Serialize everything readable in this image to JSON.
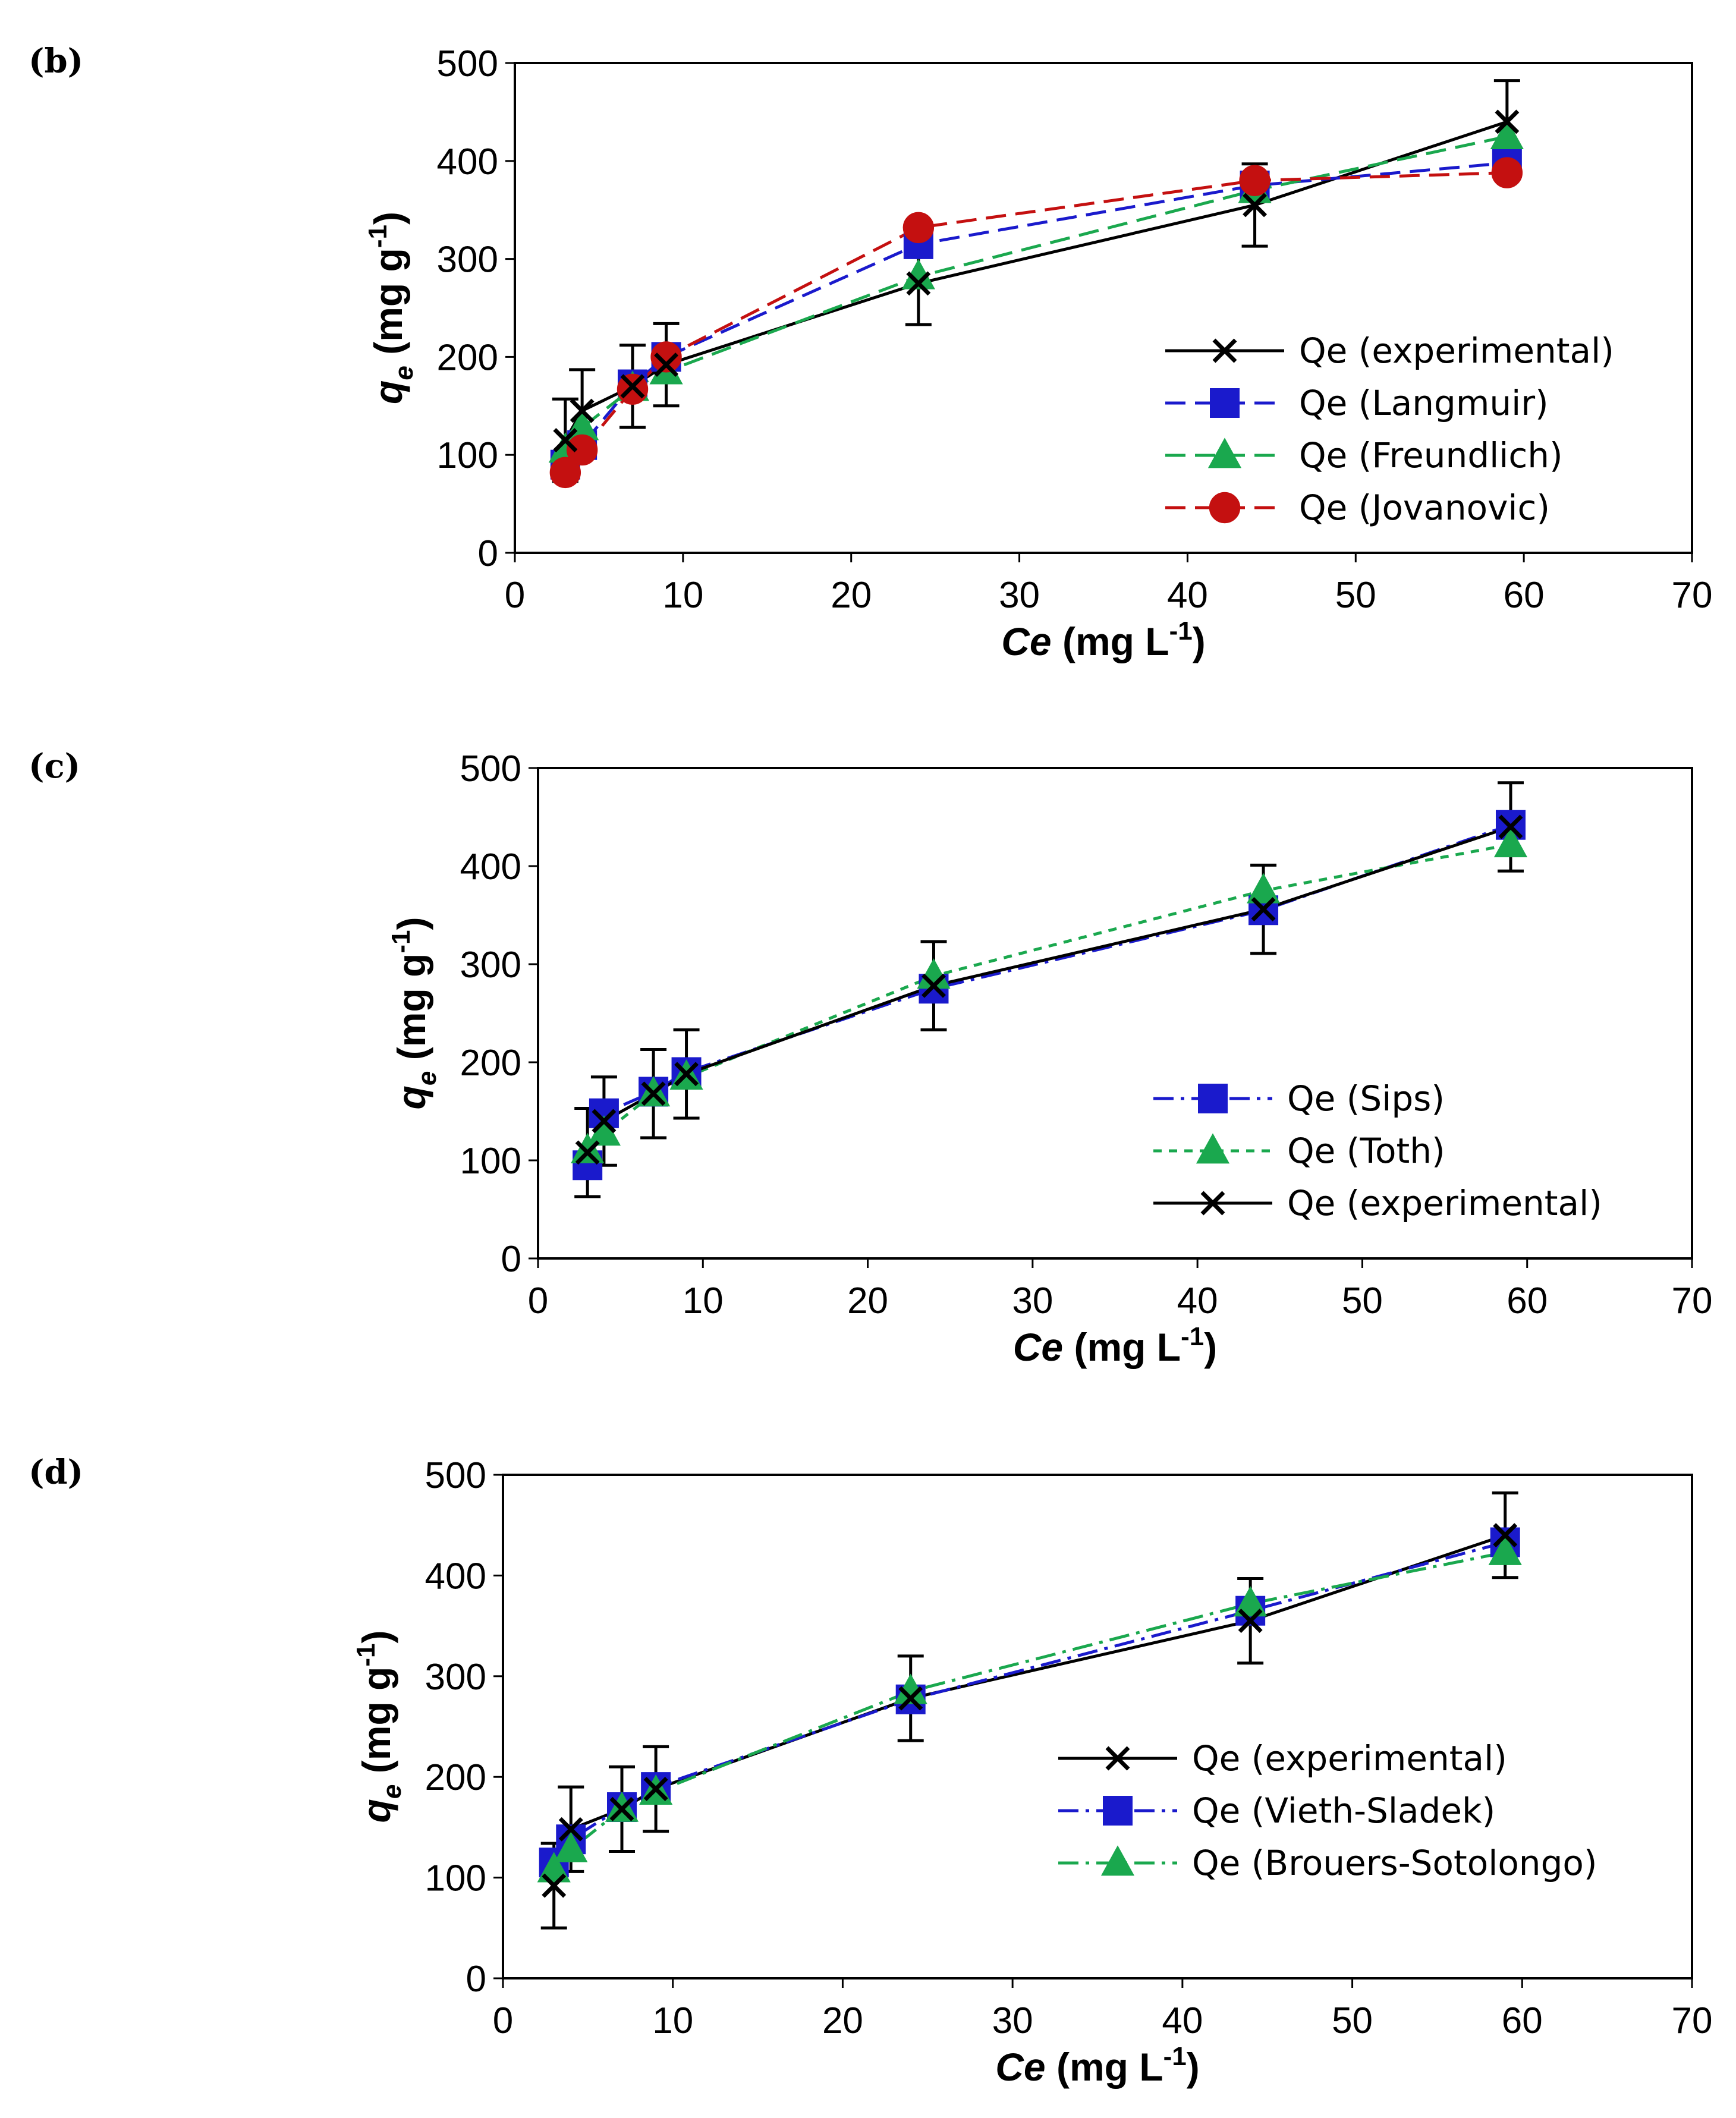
{
  "chart_data": [
    {
      "panel_label": "(b)",
      "type": "line",
      "x": [
        3,
        4,
        7,
        9,
        24,
        44,
        59
      ],
      "series": [
        {
          "name": "Qe (experimental)",
          "values": [
            115,
            145,
            170,
            192,
            275,
            355,
            440
          ],
          "color": "#000000",
          "marker": "x",
          "line": "solid",
          "error": 42
        },
        {
          "name": "Qe (Langmuir)",
          "values": [
            90,
            110,
            172,
            200,
            315,
            375,
            398
          ],
          "color": "#1a1acc",
          "marker": "square",
          "line": "dash"
        },
        {
          "name": "Qe (Freundlich)",
          "values": [
            105,
            128,
            168,
            185,
            282,
            370,
            425
          ],
          "color": "#1aa84e",
          "marker": "triangle",
          "line": "dash"
        },
        {
          "name": "Qe (Jovanovic)",
          "values": [
            82,
            105,
            167,
            200,
            332,
            380,
            388
          ],
          "color": "#c41010",
          "marker": "circle",
          "line": "dash"
        }
      ],
      "xlabel_italic": "Ce",
      "xlabel_units": "(mg L",
      "xlabel_sup": "-1",
      "xlabel_close": ")",
      "ylabel_q": "q",
      "ylabel_sub": "e",
      "ylabel_units": "(mg g",
      "ylabel_sup": "-1",
      "ylabel_close": ")",
      "xlim": [
        0,
        70
      ],
      "ylim": [
        0,
        500
      ],
      "xticks": [
        "0",
        "10",
        "20",
        "30",
        "40",
        "50",
        "60",
        "70"
      ],
      "yticks": [
        "0",
        "100",
        "200",
        "300",
        "400",
        "500"
      ],
      "legend_position": "right-center"
    },
    {
      "panel_label": "(c)",
      "type": "line",
      "x": [
        3,
        4,
        7,
        9,
        24,
        44,
        59
      ],
      "series": [
        {
          "name": "Qe (Sips)",
          "values": [
            95,
            148,
            170,
            190,
            275,
            355,
            442
          ],
          "color": "#1a1acc",
          "marker": "square",
          "line": "dashdot"
        },
        {
          "name": "Qe (Toth)",
          "values": [
            110,
            128,
            168,
            185,
            288,
            375,
            422
          ],
          "color": "#1aa84e",
          "marker": "triangle",
          "line": "dot"
        },
        {
          "name": "Qe (experimental)",
          "values": [
            108,
            140,
            168,
            188,
            278,
            356,
            440
          ],
          "color": "#000000",
          "marker": "x",
          "line": "solid",
          "error": 45
        }
      ],
      "xlabel_italic": "Ce",
      "xlabel_units": "(mg L",
      "xlabel_sup": "-1",
      "xlabel_close": ")",
      "ylabel_q": "q",
      "ylabel_sub": "e",
      "ylabel_units": "(mg g",
      "ylabel_sup": "-1",
      "ylabel_close": ")",
      "xlim": [
        0,
        70
      ],
      "ylim": [
        0,
        500
      ],
      "xticks": [
        "0",
        "10",
        "20",
        "30",
        "40",
        "50",
        "60",
        "70"
      ],
      "yticks": [
        "0",
        "100",
        "200",
        "300",
        "400",
        "500"
      ],
      "legend_position": "right-lower"
    },
    {
      "panel_label": "(d)",
      "type": "line",
      "x": [
        3,
        4,
        7,
        9,
        24,
        44,
        59
      ],
      "series": [
        {
          "name": "Qe (experimental)",
          "values": [
            92,
            148,
            168,
            188,
            278,
            355,
            440
          ],
          "color": "#000000",
          "marker": "x",
          "line": "solid",
          "error": 42
        },
        {
          "name": "Qe (Vieth-Sladek)",
          "values": [
            115,
            138,
            170,
            190,
            277,
            365,
            433
          ],
          "color": "#1a1acc",
          "marker": "square",
          "line": "dashdot"
        },
        {
          "name": "Qe (Brouers-Sotolongo)",
          "values": [
            108,
            128,
            168,
            185,
            285,
            372,
            423
          ],
          "color": "#1aa84e",
          "marker": "triangle",
          "line": "dashdot"
        }
      ],
      "xlabel_italic": "Ce",
      "xlabel_units": "(mg L",
      "xlabel_sup": "-1",
      "xlabel_close": ")",
      "ylabel_q": "q",
      "ylabel_sub": "e",
      "ylabel_units": "(mg g",
      "ylabel_sup": "-1",
      "ylabel_close": ")",
      "xlim": [
        0,
        70
      ],
      "ylim": [
        0,
        500
      ],
      "xticks": [
        "0",
        "10",
        "20",
        "30",
        "40",
        "50",
        "60",
        "70"
      ],
      "yticks": [
        "0",
        "100",
        "200",
        "300",
        "400",
        "500"
      ],
      "legend_position": "right-lower"
    }
  ]
}
